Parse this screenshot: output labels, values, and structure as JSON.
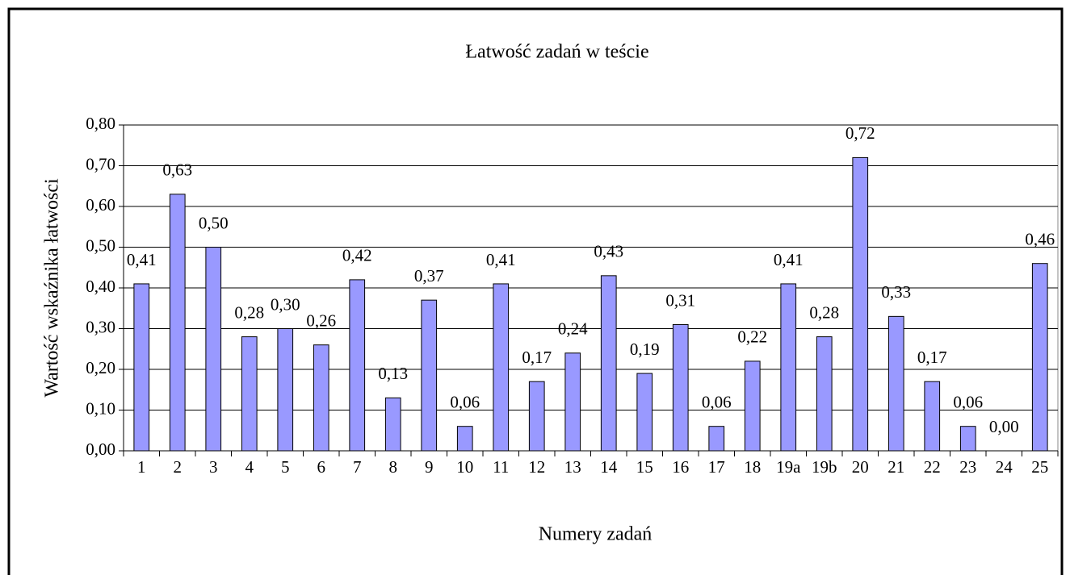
{
  "chart_data": {
    "type": "bar",
    "title": "Łatwość zadań w teście",
    "x_label": "Numery zadań",
    "y_label": "Wartość wskaźnika łatwości",
    "categories": [
      "1",
      "2",
      "3",
      "4",
      "5",
      "6",
      "7",
      "8",
      "9",
      "10",
      "11",
      "12",
      "13",
      "14",
      "15",
      "16",
      "17",
      "18",
      "19a",
      "19b",
      "20",
      "21",
      "22",
      "23",
      "24",
      "25"
    ],
    "values": [
      0.41,
      0.63,
      0.5,
      0.28,
      0.3,
      0.26,
      0.42,
      0.13,
      0.37,
      0.06,
      0.41,
      0.17,
      0.24,
      0.43,
      0.19,
      0.31,
      0.06,
      0.22,
      0.41,
      0.28,
      0.72,
      0.33,
      0.17,
      0.06,
      0.0,
      0.46
    ],
    "value_labels": [
      "0,41",
      "0,63",
      "0,50",
      "0,28",
      "0,30",
      "0,26",
      "0,42",
      "0,13",
      "0,37",
      "0,06",
      "0,41",
      "0,17",
      "0,24",
      "0,43",
      "0,19",
      "0,31",
      "0,06",
      "0,22",
      "0,41",
      "0,28",
      "0,72",
      "0,33",
      "0,17",
      "0,06",
      "0,00",
      "0,46"
    ],
    "color": "#9999ff",
    "ylim": [
      0,
      0.8
    ],
    "yticks": [
      {
        "value": 0,
        "label": "0,00"
      },
      {
        "value": 0.1,
        "label": "0,10"
      },
      {
        "value": 0.2,
        "label": "0,20"
      },
      {
        "value": 0.3,
        "label": "0,30"
      },
      {
        "value": 0.4,
        "label": "0,40"
      },
      {
        "value": 0.5,
        "label": "0,50"
      },
      {
        "value": 0.6,
        "label": "0,60"
      },
      {
        "value": 0.7,
        "label": "0,70"
      },
      {
        "value": 0.8,
        "label": "0,80"
      }
    ],
    "grid": true
  }
}
